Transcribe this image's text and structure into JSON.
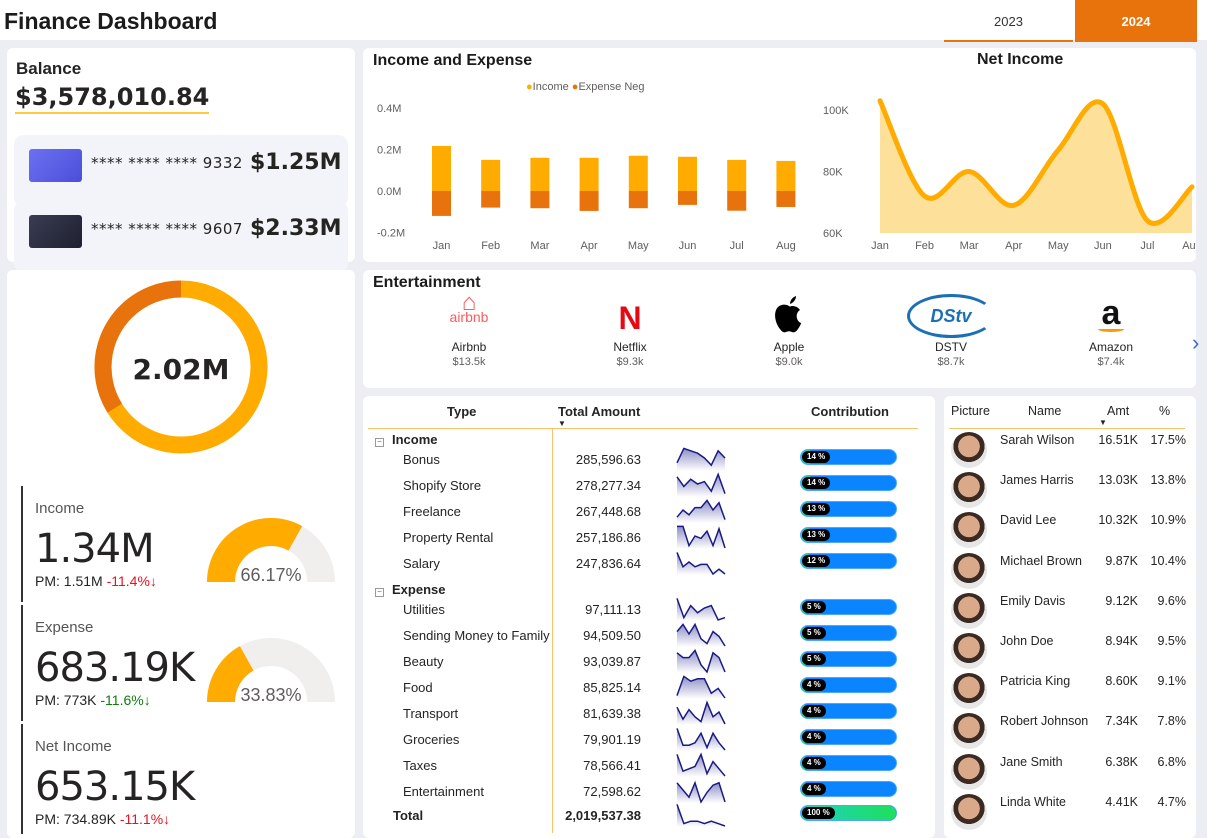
{
  "header": {
    "title": "Finance Dashboard",
    "years": [
      "2023",
      "2024"
    ],
    "selected_year": "2024",
    "accent": "#e8730c"
  },
  "balance": {
    "label": "Balance",
    "total": "$3,578,010.84",
    "cards": [
      {
        "number": "**** **** **** 9332",
        "amount": "$1.25M",
        "color": "#5b5fe8"
      },
      {
        "number": "**** **** **** 9607",
        "amount": "$2.33M",
        "color": "#2a2d40"
      }
    ]
  },
  "donut": {
    "center": "2.02M",
    "income_share": 66.17,
    "expense_share": 33.83,
    "colors": {
      "income": "#ffab00",
      "expense": "#e8730c"
    }
  },
  "kpis": [
    {
      "label": "Income",
      "value": "1.34M",
      "pm": "PM: 1.51M",
      "change": "-11.4%",
      "arrow": "↓",
      "change_color": "#e81123",
      "gauge_pct": 66.17,
      "gauge_label": "66.17%"
    },
    {
      "label": "Expense",
      "value": "683.19K",
      "pm": "PM: 773K",
      "change": "-11.6%",
      "arrow": "↓",
      "change_color": "#107c10",
      "gauge_pct": 33.83,
      "gauge_label": "33.83%"
    },
    {
      "label": "Net Income",
      "value": "653.15K",
      "pm": "PM: 734.89K",
      "change": "-11.1%",
      "arrow": "↓",
      "change_color": "#e81123"
    }
  ],
  "chart_data": [
    {
      "type": "bar",
      "title": "Income and Expense",
      "categories": [
        "Jan",
        "Feb",
        "Mar",
        "Apr",
        "May",
        "Jun",
        "Jul",
        "Aug"
      ],
      "series": [
        {
          "name": "Income",
          "values": [
            0.217,
            0.15,
            0.16,
            0.16,
            0.17,
            0.165,
            0.15,
            0.145
          ],
          "color": "#ffab00"
        },
        {
          "name": "Expense Neg",
          "values": [
            -0.12,
            -0.08,
            -0.083,
            -0.096,
            -0.083,
            -0.067,
            -0.095,
            -0.077
          ],
          "color": "#e8730c"
        }
      ],
      "yticks": [
        "0.4M",
        "0.2M",
        "0.0M",
        "-0.2M"
      ],
      "ylim": [
        -0.2,
        0.4
      ],
      "legend": "top-center"
    },
    {
      "type": "area",
      "title": "Net Income",
      "categories": [
        "Jan",
        "Feb",
        "Mar",
        "Apr",
        "May",
        "Jun",
        "Jul",
        "Aug"
      ],
      "values": [
        103000,
        72000,
        80000,
        69000,
        87000,
        102000,
        64000,
        75000
      ],
      "yticks": [
        "100K",
        "80K",
        "60K"
      ],
      "ylim": [
        60000,
        100000
      ],
      "color": "#ffab00"
    }
  ],
  "entertainment": {
    "title": "Entertainment",
    "items": [
      {
        "name": "Airbnb",
        "value": "$13.5k",
        "logo_text": "airbnb"
      },
      {
        "name": "Netflix",
        "value": "$9.3k",
        "logo_text": "N"
      },
      {
        "name": "Apple",
        "value": "$9.0k"
      },
      {
        "name": "DSTV",
        "value": "$8.7k",
        "logo_text": "DStv"
      },
      {
        "name": "Amazon",
        "value": "$7.4k",
        "logo_text": "a"
      }
    ],
    "next": "›"
  },
  "table": {
    "headers": {
      "type": "Type",
      "amount": "Total Amount",
      "contribution": "Contribution"
    },
    "groups": [
      {
        "name": "Income",
        "toggle": "⊟",
        "rows": [
          {
            "name": "Bonus",
            "amount": "285,596.63",
            "pct": "14 %",
            "p": 14,
            "spark": [
              3,
              9,
              8,
              7,
              5,
              2,
              8,
              5
            ]
          },
          {
            "name": "Shopify Store",
            "amount": "278,277.34",
            "pct": "14 %",
            "p": 14,
            "spark": [
              8,
              4,
              7,
              5,
              6,
              2,
              9,
              1
            ]
          },
          {
            "name": "Freelance",
            "amount": "267,448.68",
            "pct": "13 %",
            "p": 13,
            "spark": [
              2,
              5,
              3,
              6,
              6,
              9,
              5,
              8,
              1
            ]
          },
          {
            "name": "Property Rental",
            "amount": "257,186.86",
            "pct": "13 %",
            "p": 13,
            "spark": [
              9,
              9,
              1,
              5,
              4,
              7,
              1,
              8,
              0
            ]
          },
          {
            "name": "Salary",
            "amount": "247,836.64",
            "pct": "12 %",
            "p": 12,
            "spark": [
              9,
              3,
              5,
              3,
              4,
              4,
              0,
              2,
              0
            ]
          }
        ]
      },
      {
        "name": "Expense",
        "toggle": "⊟",
        "rows": [
          {
            "name": "Utilities",
            "amount": "97,111.13",
            "pct": "5 %",
            "p": 5,
            "spark": [
              9,
              1,
              6,
              3,
              5,
              6,
              0,
              1
            ]
          },
          {
            "name": "Sending Money to Family",
            "amount": "94,509.50",
            "pct": "5 %",
            "p": 5,
            "spark": [
              6,
              9,
              5,
              9,
              3,
              1,
              6,
              4,
              0
            ]
          },
          {
            "name": "Beauty",
            "amount": "93,039.87",
            "pct": "5 %",
            "p": 5,
            "spark": [
              8,
              6,
              6,
              9,
              3,
              0,
              8,
              6,
              0
            ]
          },
          {
            "name": "Food",
            "amount": "85,825.14",
            "pct": "4 %",
            "p": 4,
            "spark": [
              1,
              9,
              7,
              8,
              8,
              2,
              4,
              0
            ]
          },
          {
            "name": "Transport",
            "amount": "81,639.38",
            "pct": "4 %",
            "p": 4,
            "spark": [
              7,
              2,
              6,
              3,
              1,
              9,
              3,
              5,
              0
            ]
          },
          {
            "name": "Groceries",
            "amount": "79,901.19",
            "pct": "4 %",
            "p": 4,
            "spark": [
              9,
              2,
              2,
              3,
              7,
              1,
              7,
              3,
              0
            ]
          },
          {
            "name": "Taxes",
            "amount": "78,566.41",
            "pct": "4 %",
            "p": 4,
            "spark": [
              9,
              2,
              3,
              4,
              9,
              1,
              6,
              3,
              0
            ]
          },
          {
            "name": "Entertainment",
            "amount": "72,598.62",
            "pct": "4 %",
            "p": 4,
            "spark": [
              8,
              5,
              2,
              8,
              0,
              4,
              7,
              8,
              0
            ]
          }
        ]
      }
    ],
    "total": {
      "name": "Total",
      "amount": "2,019,537.38",
      "pct": "100 %",
      "p": 100,
      "spark": [
        9,
        1,
        2,
        2,
        1,
        2,
        1,
        0
      ]
    }
  },
  "people": {
    "headers": [
      "Picture",
      "Name",
      "Amt",
      "%"
    ],
    "rows": [
      {
        "name": "Sarah Wilson",
        "amt": "16.51K",
        "pct": "17.5%"
      },
      {
        "name": "James Harris",
        "amt": "13.03K",
        "pct": "13.8%"
      },
      {
        "name": "David Lee",
        "amt": "10.32K",
        "pct": "10.9%"
      },
      {
        "name": "Michael Brown",
        "amt": "9.87K",
        "pct": "10.4%"
      },
      {
        "name": "Emily Davis",
        "amt": "9.12K",
        "pct": "9.6%"
      },
      {
        "name": "John Doe",
        "amt": "8.94K",
        "pct": "9.5%"
      },
      {
        "name": "Patricia King",
        "amt": "8.60K",
        "pct": "9.1%"
      },
      {
        "name": "Robert Johnson",
        "amt": "7.34K",
        "pct": "7.8%"
      },
      {
        "name": "Jane Smith",
        "amt": "6.38K",
        "pct": "6.8%"
      },
      {
        "name": "Linda White",
        "amt": "4.41K",
        "pct": "4.7%"
      }
    ]
  }
}
